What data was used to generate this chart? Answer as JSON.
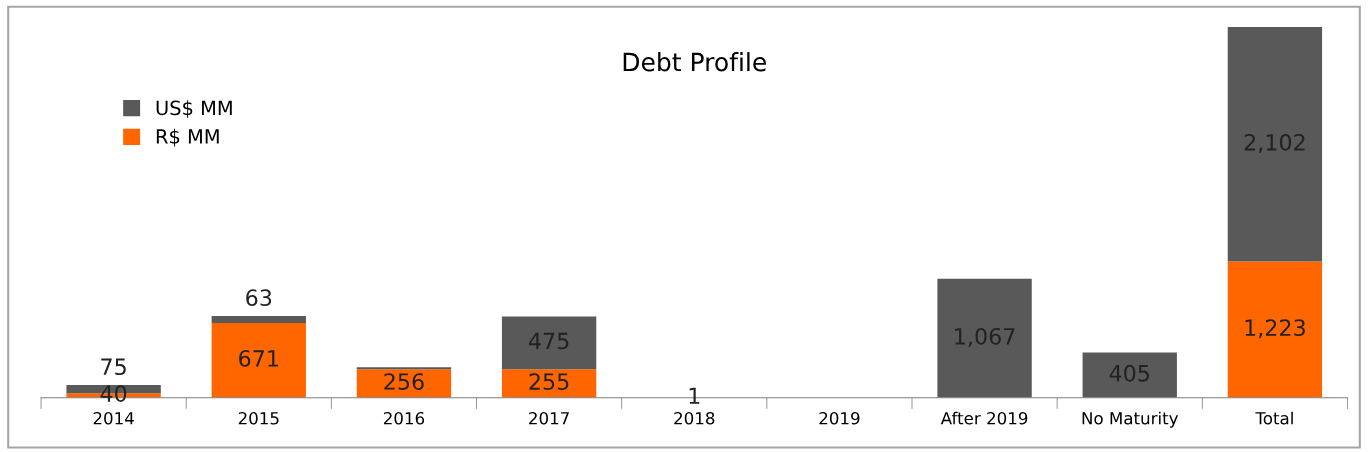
{
  "chart_data": {
    "type": "bar",
    "title": "Debt Profile",
    "stacked": true,
    "legend": "top left",
    "grid": false,
    "categories": [
      "2014",
      "2015",
      "2016",
      "2017",
      "2018",
      "2019",
      "After 2019",
      "No Maturity",
      "Total"
    ],
    "series": [
      {
        "name": "R$ MM",
        "color": "#ff6600",
        "values": [
          40,
          671,
          256,
          255,
          1,
          null,
          null,
          null,
          1223
        ],
        "value_labels": [
          "40",
          "671",
          "256",
          "255",
          "1",
          null,
          null,
          null,
          "1,223"
        ]
      },
      {
        "name": "US$ MM",
        "color": "#595959",
        "values": [
          75,
          63,
          17,
          475,
          null,
          null,
          1067,
          405,
          2102
        ],
        "value_labels": [
          "75",
          "63",
          null,
          "475",
          null,
          null,
          "1,067",
          "405",
          "2,102"
        ]
      }
    ]
  }
}
